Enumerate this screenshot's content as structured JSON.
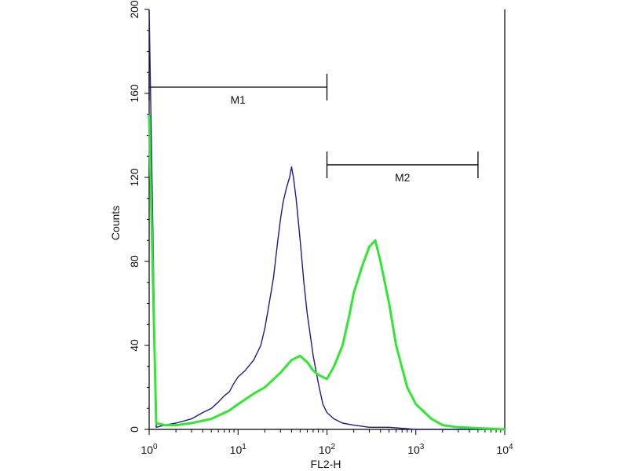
{
  "chart_data": {
    "type": "line",
    "title": "",
    "xlabel": "FL2-H",
    "ylabel": "Counts",
    "x_scale": "log",
    "xlim": [
      1,
      10000
    ],
    "ylim": [
      0,
      200
    ],
    "x_ticks": [
      {
        "value": 1,
        "base": "10",
        "exp": "0"
      },
      {
        "value": 10,
        "base": "10",
        "exp": "1"
      },
      {
        "value": 100,
        "base": "10",
        "exp": "2"
      },
      {
        "value": 1000,
        "base": "10",
        "exp": "3"
      },
      {
        "value": 10000,
        "base": "10",
        "exp": "4"
      }
    ],
    "y_ticks": [
      "0",
      "40",
      "80",
      "120",
      "160",
      "200"
    ],
    "grid": false,
    "gates": [
      {
        "label": "M1",
        "x_start": 1,
        "x_end": 100,
        "y": 163
      },
      {
        "label": "M2",
        "x_start": 100,
        "x_end": 5000,
        "y": 126
      }
    ],
    "series": [
      {
        "color": "#1c1c8c",
        "x": [
          1,
          1.2,
          1.5,
          2,
          3,
          4,
          5,
          6,
          7,
          8,
          9,
          10,
          12,
          15,
          18,
          20,
          22,
          25,
          28,
          30,
          32,
          35,
          38,
          40,
          42,
          45,
          50,
          55,
          60,
          70,
          80,
          90,
          100,
          120,
          150,
          200,
          300,
          500,
          1000,
          2000,
          10000
        ],
        "values": [
          200,
          1,
          2,
          3,
          5,
          8,
          10,
          13,
          16,
          18,
          22,
          25,
          28,
          33,
          40,
          48,
          58,
          72,
          90,
          100,
          108,
          115,
          120,
          125,
          120,
          110,
          90,
          70,
          55,
          35,
          22,
          12,
          8,
          5,
          3,
          2,
          1,
          1,
          0,
          0,
          0
        ]
      },
      {
        "color": "#33e633",
        "x": [
          1,
          1.2,
          1.5,
          2,
          3,
          5,
          8,
          10,
          15,
          20,
          30,
          40,
          50,
          60,
          70,
          80,
          100,
          120,
          150,
          180,
          200,
          250,
          300,
          350,
          400,
          500,
          600,
          800,
          1000,
          1500,
          2000,
          3000,
          10000
        ],
        "values": [
          150,
          3,
          2,
          2,
          3,
          5,
          9,
          12,
          17,
          20,
          27,
          33,
          35,
          32,
          28,
          26,
          24,
          30,
          40,
          55,
          65,
          78,
          87,
          90,
          80,
          60,
          40,
          20,
          12,
          5,
          2,
          1,
          0
        ]
      }
    ]
  }
}
